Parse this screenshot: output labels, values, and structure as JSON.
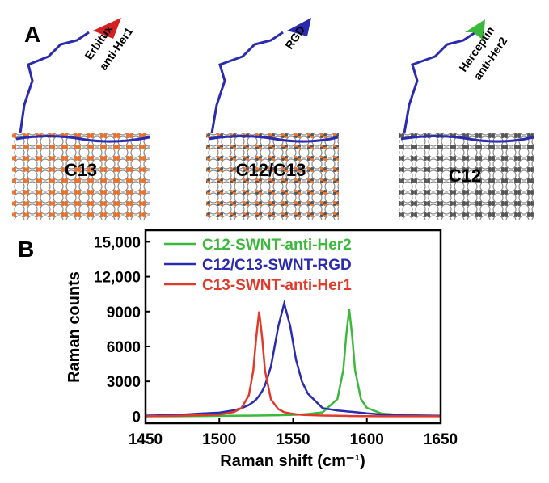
{
  "diagram": {
    "panel_a": "A",
    "panel_b": "B",
    "antibodies": [
      {
        "name": "Erbitux",
        "target": "anti-Her1"
      },
      {
        "name": "RGD"
      },
      {
        "name": "Herceptin",
        "target": "anti-Her2"
      }
    ],
    "tubes": [
      "C13",
      "C12/C13",
      "C12"
    ]
  },
  "chart_data": {
    "type": "line",
    "x_label": "Raman shift (cm⁻¹)",
    "y_label": "Raman counts",
    "x": [
      1450,
      1470,
      1490,
      1500,
      1510,
      1515,
      1520,
      1523,
      1525,
      1527,
      1529,
      1531,
      1535,
      1540,
      1544,
      1548,
      1552,
      1556,
      1560,
      1570,
      1580,
      1584,
      1586,
      1588,
      1590,
      1592,
      1596,
      1600,
      1610,
      1625,
      1650
    ],
    "series": [
      {
        "name": "C12-SWNT-anti-Her2",
        "color": "#3cb83c",
        "values": [
          0,
          0,
          20,
          30,
          40,
          50,
          50,
          60,
          60,
          60,
          70,
          70,
          80,
          90,
          100,
          110,
          130,
          160,
          200,
          335,
          1480,
          3980,
          6920,
          9200,
          6920,
          3980,
          1480,
          720,
          230,
          80,
          30
        ]
      },
      {
        "name": "C12/C13-SWNT-RGD",
        "color": "#2b2bb0",
        "values": [
          50,
          100,
          250,
          310,
          510,
          690,
          970,
          1230,
          1450,
          1760,
          2150,
          2670,
          4270,
          7760,
          9700,
          7760,
          4850,
          2980,
          1940,
          700,
          500,
          450,
          420,
          400,
          380,
          350,
          300,
          250,
          150,
          80,
          40
        ]
      },
      {
        "name": "C13-SWNT-anti-Her1",
        "color": "#e03a2a",
        "values": [
          0,
          30,
          100,
          150,
          370,
          700,
          1800,
          3900,
          6770,
          9000,
          6770,
          3900,
          1450,
          610,
          350,
          240,
          170,
          120,
          100,
          60,
          40,
          30,
          30,
          20,
          20,
          20,
          10,
          10,
          0,
          0,
          0
        ]
      }
    ],
    "xlim": [
      1450,
      1650
    ],
    "xticks": [
      1450,
      1500,
      1550,
      1600,
      1650
    ],
    "ylim": [
      -600,
      16000
    ],
    "yticks": [
      0,
      3000,
      6000,
      9000,
      {
        "value": 12000,
        "label": "12,000"
      },
      {
        "value": 15000,
        "label": "15,000"
      }
    ]
  }
}
